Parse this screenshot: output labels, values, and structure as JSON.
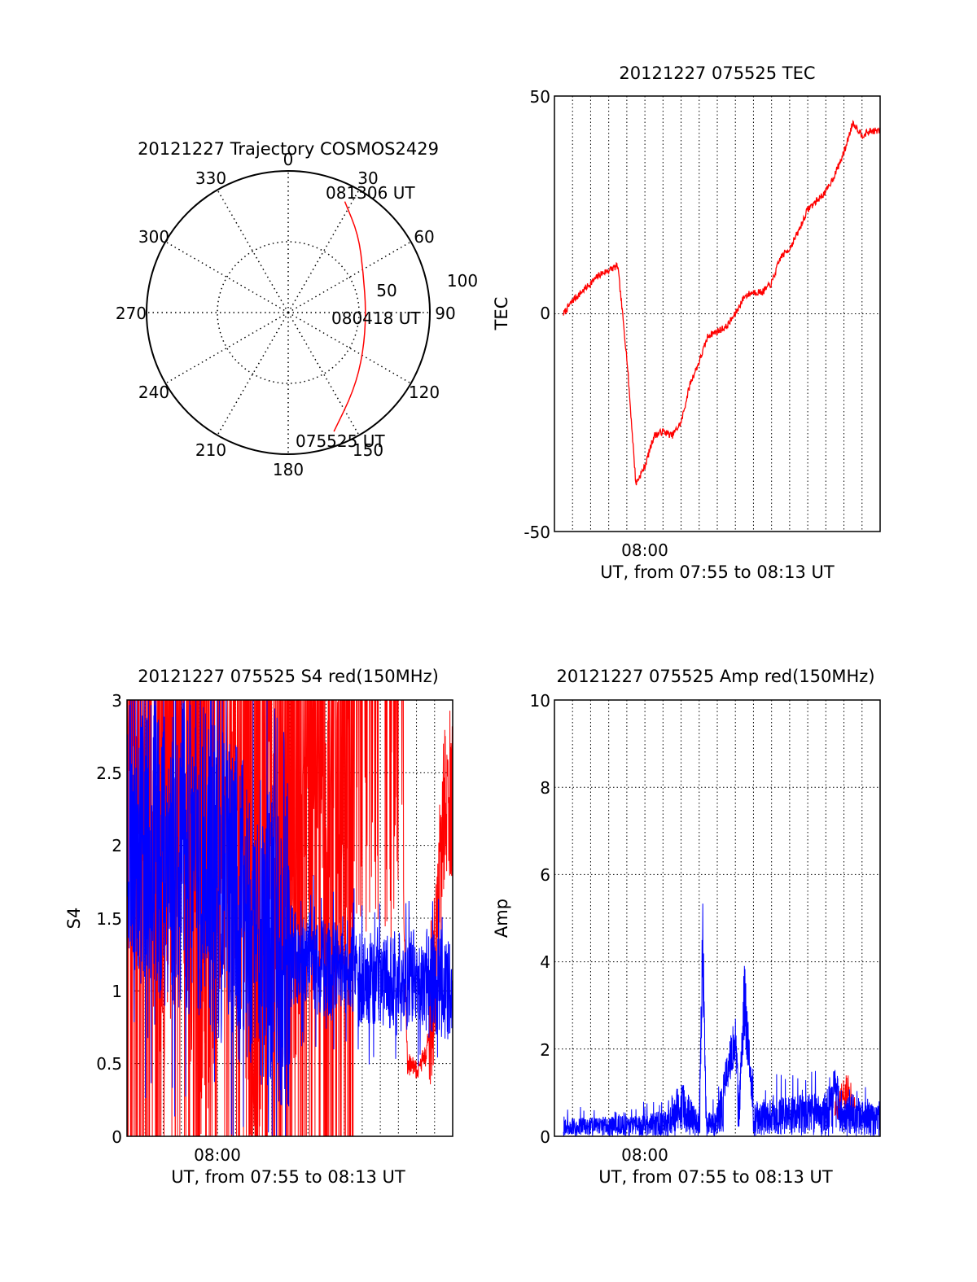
{
  "colors": {
    "red": "#ff0000",
    "blue": "#0000ff",
    "axis": "#000000",
    "grid": "#000000"
  },
  "chart_data": [
    {
      "id": "trajectory",
      "type": "scatter",
      "title": "20121227 Trajectory COSMOS2429",
      "coordinate_system": "polar (azimuth clockwise from north, radius = zenith angle)",
      "azimuth_labels": [
        "0",
        "30",
        "60",
        "90",
        "120",
        "150",
        "180",
        "210",
        "240",
        "270",
        "300",
        "330"
      ],
      "radius_labels": [
        "50",
        "100"
      ],
      "annotations": [
        "081306 UT",
        "080418 UT",
        "075525 UT"
      ],
      "series": [
        {
          "color": "red",
          "points": [
            {
              "az": 159,
              "r": 90
            },
            {
              "az": 140,
              "r": 72
            },
            {
              "az": 118,
              "r": 60
            },
            {
              "az": 90,
              "r": 55
            },
            {
              "az": 62,
              "r": 60
            },
            {
              "az": 42,
              "r": 74
            },
            {
              "az": 27,
              "r": 88
            }
          ]
        }
      ],
      "grid": true
    },
    {
      "id": "tec",
      "type": "line",
      "title": "20121227 075525 TEC",
      "xlabel": "UT, from 07:55 to 08:13 UT",
      "ylabel": "TEC",
      "x_tick_labels": [
        "08:00"
      ],
      "y_tick_labels": [
        "50",
        "0",
        "-50"
      ],
      "xlim": [
        "07:55",
        "08:13"
      ],
      "ylim": [
        -50,
        50
      ],
      "grid": true,
      "series": [
        {
          "color": "red",
          "x": [
            "07:55.5",
            "07:56.0",
            "07:56.5",
            "07:57.0",
            "07:57.5",
            "07:58.0",
            "07:58.5",
            "07:59.0",
            "07:59.5",
            "08:00.0",
            "08:00.5",
            "08:01.0",
            "08:01.5",
            "08:02.0",
            "08:02.5",
            "08:03.0",
            "08:03.5",
            "08:04.0",
            "08:04.5",
            "08:05.0",
            "08:05.5",
            "08:06.0",
            "08:06.5",
            "08:07.0",
            "08:07.5",
            "08:08.0",
            "08:08.5",
            "08:09.0",
            "08:09.5",
            "08:10.0",
            "08:10.5",
            "08:11.0",
            "08:11.5",
            "08:12.0",
            "08:12.5",
            "08:13.0"
          ],
          "values": [
            0,
            3,
            5,
            7,
            9,
            10,
            11,
            -10,
            -39,
            -35,
            -28,
            -27,
            -28,
            -25,
            -16,
            -11,
            -5,
            -4,
            -3,
            0,
            4,
            5,
            5,
            7,
            13,
            15,
            19,
            24,
            26,
            28,
            32,
            37,
            44,
            41,
            42,
            42
          ]
        }
      ]
    },
    {
      "id": "s4",
      "type": "line",
      "title": "20121227 075525 S4 red(150MHz)",
      "xlabel": "UT, from 07:55 to 08:13 UT",
      "ylabel": "S4",
      "x_tick_labels": [
        "08:00"
      ],
      "y_tick_labels": [
        "0",
        "0.5",
        "1",
        "1.5",
        "2",
        "2.5",
        "3"
      ],
      "xlim": [
        "07:55",
        "08:13"
      ],
      "ylim": [
        0,
        3
      ],
      "grid": true,
      "series": [
        {
          "color": "red",
          "note": "heavy noise, frequent full-range spikes 0–3 until ~08:07; stays near 3 from 08:08 to 08:10; drops to ~0.5 at 08:10.5–08:11.5; returns to ~2.2–3 at 08:12–08:13",
          "x": [
            "07:55",
            "07:56",
            "07:57",
            "07:58",
            "07:59",
            "08:00",
            "08:01",
            "08:02",
            "08:03",
            "08:04",
            "08:05",
            "08:06",
            "08:07",
            "08:08",
            "08:09",
            "08:10",
            "08:10.5",
            "08:11",
            "08:11.5",
            "08:12",
            "08:12.5",
            "08:13"
          ],
          "values": [
            3,
            3,
            2.2,
            3,
            1.5,
            2.5,
            3,
            1.2,
            3,
            2,
            3,
            3,
            3,
            3,
            3,
            3,
            0.5,
            0.45,
            0.55,
            1.1,
            2.2,
            2.4
          ]
        },
        {
          "color": "blue",
          "x": [
            "07:55",
            "07:56",
            "07:57",
            "07:58",
            "07:59",
            "08:00",
            "08:01",
            "08:02",
            "08:03",
            "08:04",
            "08:05",
            "08:06",
            "08:07",
            "08:08",
            "08:09",
            "08:10",
            "08:11",
            "08:12",
            "08:13"
          ],
          "values": [
            2.3,
            2.1,
            2.0,
            1.95,
            1.9,
            1.75,
            1.6,
            1.5,
            1.35,
            1.25,
            1.2,
            1.15,
            1.1,
            1.1,
            1.1,
            1.05,
            1.1,
            1.05,
            1.0
          ]
        }
      ]
    },
    {
      "id": "amp",
      "type": "line",
      "title": "20121227 075525 Amp red(150MHz)",
      "xlabel": "UT, from 07:55 to 08:13 UT",
      "ylabel": "Amp",
      "x_tick_labels": [
        "08:00"
      ],
      "y_tick_labels": [
        "0",
        "2",
        "4",
        "6",
        "8",
        "10"
      ],
      "xlim": [
        "07:55",
        "08:13"
      ],
      "ylim": [
        0,
        10
      ],
      "grid": true,
      "series": [
        {
          "color": "blue",
          "note": "noise floor about 0–0.8 throughout",
          "x": [
            "07:55.5",
            "08:00",
            "08:01",
            "08:02",
            "08:03",
            "08:03.2",
            "08:03.4",
            "08:04",
            "08:05",
            "08:05.2",
            "08:05.5",
            "08:06",
            "08:07",
            "08:08",
            "08:09",
            "08:10",
            "08:10.5",
            "08:11",
            "08:11.5",
            "08:12",
            "08:13"
          ],
          "values": [
            0.4,
            0.5,
            0.6,
            1.3,
            0.6,
            5.6,
            0.5,
            0.7,
            2.9,
            0.8,
            4.1,
            0.8,
            0.9,
            0.9,
            1.0,
            1.0,
            1.6,
            0.9,
            1.0,
            0.9,
            0.8
          ]
        },
        {
          "color": "red",
          "x": [
            "08:10.5",
            "08:11",
            "08:11.3",
            "08:11.6"
          ],
          "values": [
            0.8,
            1.1,
            1.3,
            0.9
          ]
        }
      ]
    }
  ]
}
